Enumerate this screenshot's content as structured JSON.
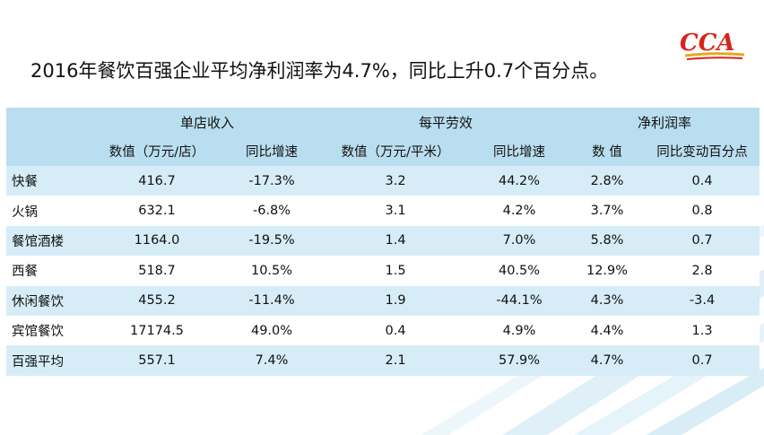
{
  "headline": "2016年餐饮百强企业平均净利润率为4.7%，同比上升0.7个百分点。",
  "logo_text": "CCA",
  "colors": {
    "header_bg": "#b9deef",
    "row_alt_bg": "#d6edf7",
    "logo_red": "#d8241b",
    "logo_gold": "#e5a820",
    "bg_ray": "#c5e4f3"
  },
  "table": {
    "groups": [
      "单店收入",
      "每平劳效",
      "净利润率"
    ],
    "subheaders": [
      "数值（万元/店）",
      "同比增速",
      "数值（万元/平米）",
      "同比增速",
      "数 值",
      "同比变动百分点"
    ],
    "rows": [
      [
        "快餐",
        "416.7",
        "-17.3%",
        "3.2",
        "44.2%",
        "2.8%",
        "0.4"
      ],
      [
        "火锅",
        "632.1",
        "-6.8%",
        "3.1",
        "4.2%",
        "3.7%",
        "0.8"
      ],
      [
        "餐馆酒楼",
        "1164.0",
        "-19.5%",
        "1.4",
        "7.0%",
        "5.8%",
        "0.7"
      ],
      [
        "西餐",
        "518.7",
        "10.5%",
        "1.5",
        "40.5%",
        "12.9%",
        "2.8"
      ],
      [
        "休闲餐饮",
        "455.2",
        "-11.4%",
        "1.9",
        "-44.1%",
        "4.3%",
        "-3.4"
      ],
      [
        "宾馆餐饮",
        "17174.5",
        "49.0%",
        "0.4",
        "4.9%",
        "4.4%",
        "1.3"
      ],
      [
        "百强平均",
        "557.1",
        "7.4%",
        "2.1",
        "57.9%",
        "4.7%",
        "0.7"
      ]
    ]
  }
}
